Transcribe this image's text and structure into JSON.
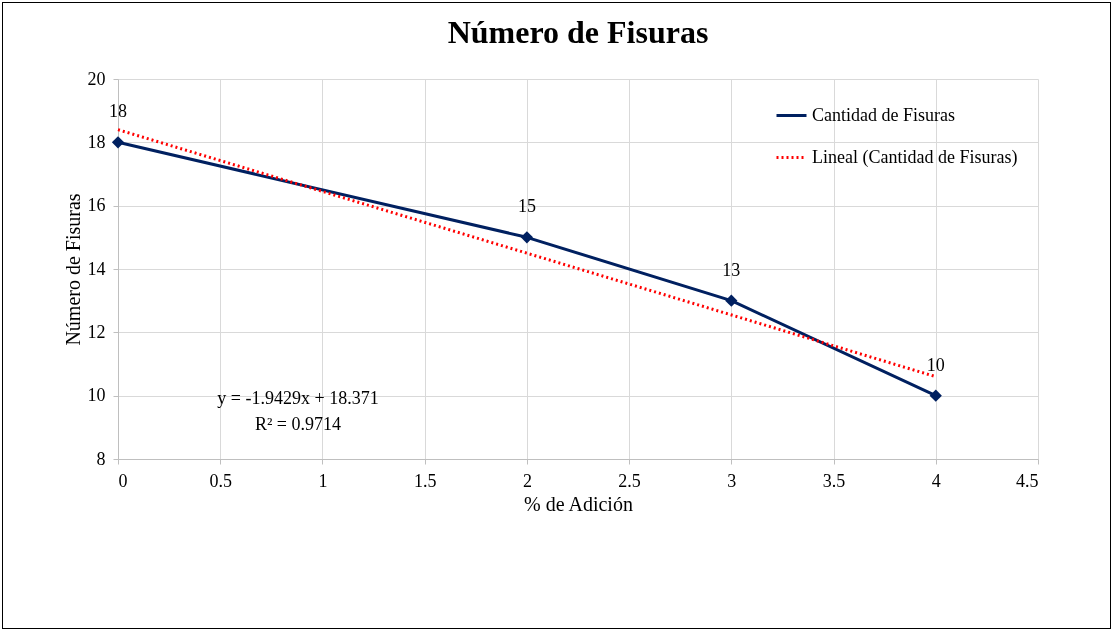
{
  "chart_data": {
    "type": "line",
    "title": "Número de Fisuras",
    "xlabel": "% de Adición",
    "ylabel": "Número de Fisuras",
    "xlim": [
      0,
      4.5
    ],
    "xticks": [
      0,
      0.5,
      1,
      1.5,
      2,
      2.5,
      3,
      3.5,
      4,
      4.5
    ],
    "ylim": [
      8,
      20
    ],
    "yticks": [
      8,
      10,
      12,
      14,
      16,
      18,
      20
    ],
    "grid": true,
    "legend": "top right",
    "annotations": [
      "y = -1.9429x + 18.371",
      "R² = 0.9714"
    ],
    "series": [
      {
        "name": "Cantidad de Fisuras",
        "color": "#002060",
        "x": [
          0,
          2,
          3,
          4
        ],
        "values": [
          18,
          15,
          13,
          10
        ],
        "value_labels": [
          "18",
          "15",
          "13",
          "10"
        ],
        "marker": "diamond",
        "line_style": "solid"
      },
      {
        "name": "Lineal (Cantidad de Fisuras)",
        "type": "line",
        "color": "#ff0000",
        "x": [
          0,
          4
        ],
        "values": [
          18.4,
          10.6
        ],
        "marker": "none",
        "line_style": "dotted"
      }
    ]
  }
}
